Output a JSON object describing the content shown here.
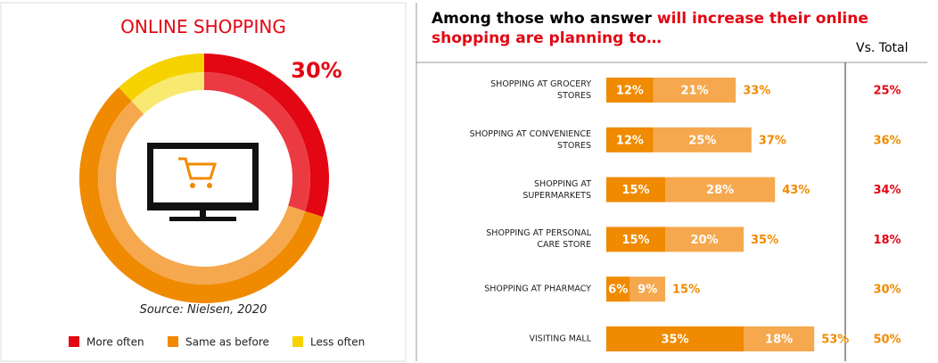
{
  "chart_data": [
    {
      "type": "donut",
      "title": "ONLINE SHOPPING",
      "categories": [
        "More often",
        "Same as before",
        "Less often"
      ],
      "values": [
        30,
        58,
        12
      ],
      "value_labels": [
        "30%",
        null,
        null
      ],
      "colors": [
        "#e30613",
        "#f08a00",
        "#f6d300"
      ],
      "inner_colors": [
        "#ec3a43",
        "#f5a84e",
        "#f8ea70"
      ],
      "source": "Source: Nielsen, 2020",
      "legend": "bottom"
    },
    {
      "type": "stacked_bar_h",
      "title": "Among those who answer",
      "title_highlight": "will increase their online shopping are planning to…",
      "highlight_color": "#e30613",
      "categories": [
        "SHOPPING AT GROCERY\nSTORES",
        "SHOPPING AT CONVENIENCE\nSTORES",
        "SHOPPING AT\nSUPERMARKETS",
        "SHOPPING AT PERSONAL\nCARE STORE",
        "SHOPPING AT PHARMACY",
        "VISITING MALL"
      ],
      "series": [
        {
          "color": "#f08a00",
          "values": [
            12,
            12,
            15,
            15,
            6,
            35
          ],
          "value_labels": [
            "12%",
            "12%",
            "15%",
            "15%",
            "6%",
            "35%"
          ]
        },
        {
          "color": "#f5a84e",
          "values": [
            21,
            25,
            28,
            20,
            9,
            18
          ],
          "value_labels": [
            "21%",
            "25%",
            "28%",
            "20%",
            "9%",
            "18%"
          ]
        }
      ],
      "sums": [
        33,
        37,
        43,
        35,
        15,
        53
      ],
      "sum_labels": [
        "33%",
        "37%",
        "43%",
        "35%",
        "15%",
        "53%"
      ],
      "sum_color": "#f08a00",
      "comparison_title": "Vs. Total",
      "comparison": [
        25,
        36,
        34,
        18,
        30,
        50
      ],
      "comparison_labels": [
        "25%",
        "36%",
        "34%",
        "18%",
        "30%",
        "50%"
      ],
      "comparison_colors": [
        "#e30613",
        "#f08a00",
        "#e30613",
        "#e30613",
        "#f08a00",
        "#f08a00"
      ]
    }
  ]
}
